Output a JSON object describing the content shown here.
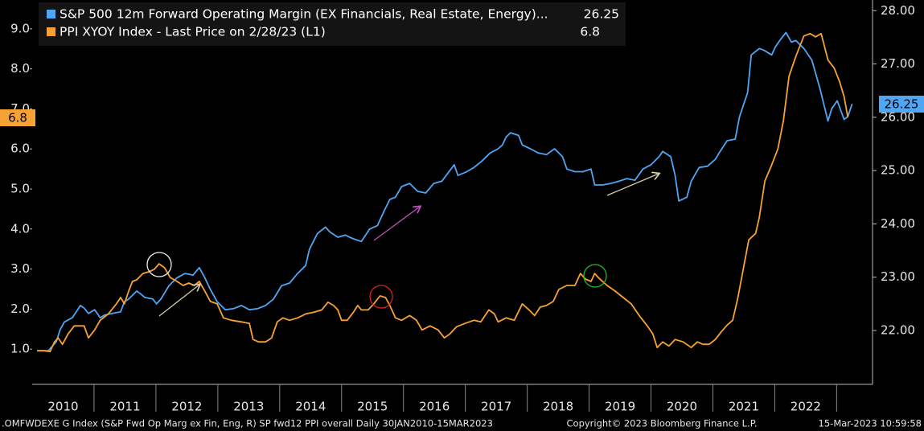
{
  "chart_data": {
    "type": "line",
    "series": [
      {
        "name": "S&P 500 12m Forward Operating Margin (EX Financials, Real Estate, Energy)...",
        "color": "#4ea6f5",
        "axis": "y2",
        "x": [
          2010.08,
          2010.26,
          2010.39,
          2010.45,
          2010.52,
          2010.65,
          2010.78,
          2010.84,
          2010.91,
          2011.01,
          2011.1,
          2011.17,
          2011.3,
          2011.43,
          2011.49,
          2011.56,
          2011.69,
          2011.75,
          2011.82,
          2011.95,
          2012.01,
          2012.08,
          2012.21,
          2012.34,
          2012.47,
          2012.6,
          2012.7,
          2012.79,
          2012.88,
          2012.99,
          2013.12,
          2013.25,
          2013.38,
          2013.51,
          2013.64,
          2013.77,
          2013.9,
          2014.03,
          2014.16,
          2014.29,
          2014.42,
          2014.48,
          2014.61,
          2014.74,
          2014.81,
          2014.94,
          2015.06,
          2015.19,
          2015.32,
          2015.45,
          2015.58,
          2015.69,
          2015.78,
          2015.87,
          2015.97,
          2016.1,
          2016.23,
          2016.36,
          2016.49,
          2016.62,
          2016.75,
          2016.82,
          2016.88,
          2017.01,
          2017.14,
          2017.27,
          2017.4,
          2017.53,
          2017.6,
          2017.66,
          2017.73,
          2017.86,
          2017.92,
          2018.05,
          2018.18,
          2018.31,
          2018.44,
          2018.57,
          2018.64,
          2018.77,
          2018.9,
          2019.03,
          2019.09,
          2019.22,
          2019.35,
          2019.48,
          2019.61,
          2019.74,
          2019.87,
          2020.0,
          2020.13,
          2020.19,
          2020.32,
          2020.39,
          2020.45,
          2020.58,
          2020.65,
          2020.78,
          2020.91,
          2021.04,
          2021.1,
          2021.23,
          2021.36,
          2021.43,
          2021.56,
          2021.62,
          2021.75,
          2021.82,
          2021.95,
          2022.01,
          2022.1,
          2022.18,
          2022.27,
          2022.34,
          2022.47,
          2022.6,
          2022.73,
          2022.86,
          2022.92,
          2023.01,
          2023.12,
          2023.18,
          2023.25
        ],
        "values": [
          21.62,
          21.62,
          21.79,
          22.01,
          22.16,
          22.24,
          22.47,
          22.42,
          22.32,
          22.39,
          22.24,
          22.29,
          22.32,
          22.35,
          22.54,
          22.59,
          22.74,
          22.69,
          22.62,
          22.59,
          22.5,
          22.59,
          22.84,
          22.99,
          23.07,
          23.04,
          23.18,
          22.99,
          22.77,
          22.54,
          22.39,
          22.41,
          22.47,
          22.39,
          22.41,
          22.47,
          22.59,
          22.84,
          22.89,
          23.07,
          23.22,
          23.52,
          23.82,
          23.94,
          23.85,
          23.75,
          23.79,
          23.72,
          23.67,
          23.9,
          23.97,
          24.25,
          24.46,
          24.5,
          24.7,
          24.76,
          24.61,
          24.58,
          24.76,
          24.8,
          25.0,
          25.11,
          24.91,
          24.97,
          25.06,
          25.18,
          25.33,
          25.41,
          25.48,
          25.63,
          25.71,
          25.66,
          25.48,
          25.41,
          25.33,
          25.3,
          25.41,
          25.26,
          25.03,
          24.98,
          24.98,
          25.03,
          24.73,
          24.73,
          24.76,
          24.8,
          24.85,
          24.82,
          25.03,
          25.11,
          25.26,
          25.36,
          25.26,
          24.91,
          24.43,
          24.5,
          24.8,
          25.06,
          25.08,
          25.21,
          25.33,
          25.56,
          25.59,
          26.01,
          26.46,
          27.17,
          27.29,
          27.26,
          27.17,
          27.32,
          27.47,
          27.59,
          27.41,
          27.44,
          27.29,
          27.07,
          26.54,
          25.93,
          26.16,
          26.31,
          25.96,
          26.01,
          26.25
        ]
      },
      {
        "name": "PPI XYOY Index - Last Price on 2/28/23 (L1)",
        "color": "#f7a234",
        "axis": "y",
        "x": [
          2010.08,
          2010.19,
          2010.29,
          2010.36,
          2010.42,
          2010.49,
          2010.58,
          2010.68,
          2010.75,
          2010.84,
          2010.91,
          2011.01,
          2011.1,
          2011.23,
          2011.36,
          2011.43,
          2011.49,
          2011.56,
          2011.62,
          2011.69,
          2011.79,
          2011.88,
          2011.97,
          2012.05,
          2012.14,
          2012.23,
          2012.34,
          2012.44,
          2012.53,
          2012.62,
          2012.7,
          2012.79,
          2012.88,
          2012.99,
          2013.09,
          2013.22,
          2013.38,
          2013.51,
          2013.57,
          2013.66,
          2013.77,
          2013.87,
          2013.96,
          2014.05,
          2014.16,
          2014.29,
          2014.42,
          2014.55,
          2014.68,
          2014.78,
          2014.87,
          2014.94,
          2015.0,
          2015.09,
          2015.19,
          2015.26,
          2015.32,
          2015.43,
          2015.52,
          2015.62,
          2015.71,
          2015.78,
          2015.87,
          2015.97,
          2016.1,
          2016.21,
          2016.3,
          2016.43,
          2016.56,
          2016.66,
          2016.75,
          2016.86,
          2016.99,
          2017.14,
          2017.25,
          2017.38,
          2017.47,
          2017.53,
          2017.66,
          2017.79,
          2017.92,
          2018.03,
          2018.12,
          2018.21,
          2018.31,
          2018.42,
          2018.51,
          2018.64,
          2018.77,
          2018.86,
          2018.94,
          2019.03,
          2019.09,
          2019.16,
          2019.29,
          2019.42,
          2019.55,
          2019.68,
          2019.81,
          2019.94,
          2020.03,
          2020.1,
          2020.19,
          2020.29,
          2020.39,
          2020.52,
          2020.65,
          2020.75,
          2020.84,
          2020.94,
          2021.04,
          2021.14,
          2021.23,
          2021.32,
          2021.4,
          2021.49,
          2021.58,
          2021.69,
          2021.75,
          2021.84,
          2021.95,
          2022.05,
          2022.14,
          2022.23,
          2022.34,
          2022.47,
          2022.57,
          2022.66,
          2022.75,
          2022.86,
          2022.96,
          2023.05,
          2023.12,
          2023.18
        ],
        "values": [
          0.96,
          0.96,
          0.94,
          1.18,
          1.28,
          1.12,
          1.38,
          1.58,
          1.58,
          1.58,
          1.28,
          1.48,
          1.72,
          1.88,
          2.13,
          2.29,
          2.13,
          2.45,
          2.69,
          2.73,
          2.89,
          2.93,
          2.99,
          3.13,
          3.03,
          2.79,
          2.69,
          2.59,
          2.65,
          2.59,
          2.69,
          2.45,
          2.19,
          2.13,
          1.78,
          1.72,
          1.68,
          1.64,
          1.24,
          1.18,
          1.18,
          1.28,
          1.68,
          1.78,
          1.72,
          1.78,
          1.88,
          1.92,
          1.98,
          2.17,
          2.09,
          1.98,
          1.72,
          1.72,
          1.92,
          2.09,
          1.98,
          1.98,
          2.13,
          2.33,
          2.29,
          2.09,
          1.78,
          1.72,
          1.84,
          1.72,
          1.48,
          1.58,
          1.48,
          1.28,
          1.38,
          1.56,
          1.64,
          1.72,
          1.68,
          1.98,
          1.88,
          1.68,
          1.78,
          1.72,
          2.13,
          1.98,
          1.84,
          2.05,
          2.09,
          2.19,
          2.49,
          2.59,
          2.59,
          2.89,
          2.75,
          2.69,
          2.89,
          2.77,
          2.59,
          2.45,
          2.29,
          2.13,
          1.84,
          1.58,
          1.38,
          1.04,
          1.18,
          1.08,
          1.24,
          1.18,
          1.04,
          1.18,
          1.12,
          1.12,
          1.24,
          1.44,
          1.6,
          1.72,
          2.25,
          2.99,
          3.73,
          3.89,
          4.29,
          5.2,
          5.6,
          6.0,
          6.71,
          7.81,
          8.31,
          8.82,
          8.88,
          8.8,
          8.88,
          8.22,
          8.02,
          7.67,
          7.31,
          6.8
        ]
      }
    ],
    "xlim": [
      2010,
      2023.58
    ],
    "xticks": [
      2010,
      2011,
      2012,
      2013,
      2014,
      2015,
      2016,
      2017,
      2018,
      2019,
      2020,
      2021,
      2022
    ],
    "ylim": [
      0.12,
      9.72
    ],
    "yticks": [
      {
        "value": 1,
        "label": "1.0"
      },
      {
        "value": 2,
        "label": "2.0"
      },
      {
        "value": 3,
        "label": "3.0"
      },
      {
        "value": 4,
        "label": "4.0"
      },
      {
        "value": 5,
        "label": "5.0"
      },
      {
        "value": 6,
        "label": "6.0"
      },
      {
        "value": 7,
        "label": "7.0"
      },
      {
        "value": 8,
        "label": "8.0"
      },
      {
        "value": 9,
        "label": "9.0"
      }
    ],
    "y2lim": [
      20.99,
      28.2
    ],
    "y2ticks": [
      {
        "value": 22,
        "label": "22.00"
      },
      {
        "value": 23,
        "label": "23.00"
      },
      {
        "value": 24,
        "label": "24.00"
      },
      {
        "value": 25,
        "label": "25.00"
      },
      {
        "value": 26,
        "label": "26.00"
      },
      {
        "value": 27,
        "label": "27.00"
      },
      {
        "value": 28,
        "label": "28.00"
      }
    ],
    "legend": "top-left",
    "grid": false
  },
  "footer": {
    "left": ".OMFWDEXE G Index (S&P Fwd Op Marg ex Fin, Eng, R) SP fwd12 PPI overall  Daily 30JAN2010-15MAR2023",
    "center": "Copyright© 2023 Bloomberg Finance L.P.",
    "right": "15-Mar-2023 10:59:58"
  }
}
